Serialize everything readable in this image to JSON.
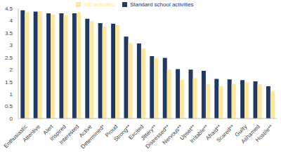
{
  "chart_data": {
    "type": "bar",
    "categories": [
      "Enthusiastic",
      "Attentive",
      "Alert",
      "Inspired",
      "Interested",
      "Active",
      "Determined*",
      "Proud",
      "Strong**",
      "Excited",
      "Jittery**",
      "Distressed**",
      "Nervous**",
      "Upset**",
      "Irritable**",
      "Afraid**",
      "Scared**",
      "Guilty",
      "Ashamed",
      "Hostile**"
    ],
    "series": [
      {
        "name": "Standard school activities",
        "color": "#203864",
        "values": [
          4.42,
          4.37,
          4.3,
          4.3,
          4.3,
          4.08,
          3.9,
          3.88,
          3.35,
          3.07,
          2.55,
          2.48,
          2.02,
          2.0,
          1.95,
          1.62,
          1.6,
          1.57,
          1.52,
          1.32
        ]
      },
      {
        "name": "GE activities",
        "color": "#ffe699",
        "values": [
          4.35,
          4.38,
          4.25,
          4.22,
          4.33,
          3.97,
          3.75,
          3.82,
          3.08,
          2.87,
          2.48,
          2.0,
          1.58,
          1.65,
          1.4,
          1.33,
          1.42,
          1.48,
          1.4,
          1.12
        ]
      }
    ],
    "ylim": [
      0,
      4.5
    ],
    "yticks": [
      0,
      0.5,
      1,
      1.5,
      2,
      2.5,
      3,
      3.5,
      4,
      4.5
    ],
    "grid": false,
    "legend": "top"
  }
}
